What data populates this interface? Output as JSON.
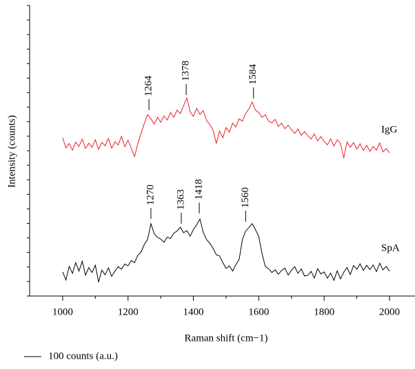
{
  "chart_data": {
    "type": "line",
    "x_label": "Raman shift (cm−1)",
    "y_label": "Intensity (counts)",
    "scale_bar_label": "100 counts (a.u.)",
    "xlim": [
      899,
      2078
    ],
    "ylim": [
      0,
      100
    ],
    "xticks": [
      1000,
      1200,
      1400,
      1600,
      1800,
      2000
    ],
    "xminorticks": [
      1100,
      1300,
      1500,
      1700,
      1900
    ],
    "yticks": [
      0,
      5,
      10,
      15,
      20,
      25,
      30,
      35,
      40,
      45,
      50,
      55,
      60,
      65,
      70,
      75,
      80,
      85,
      90,
      95,
      100
    ],
    "show_ytick_labels": false,
    "x": [
      1000,
      1010,
      1020,
      1030,
      1040,
      1050,
      1060,
      1070,
      1080,
      1090,
      1100,
      1110,
      1120,
      1130,
      1140,
      1150,
      1160,
      1170,
      1180,
      1190,
      1200,
      1210,
      1220,
      1230,
      1240,
      1250,
      1260,
      1270,
      1280,
      1290,
      1300,
      1310,
      1320,
      1330,
      1340,
      1350,
      1360,
      1370,
      1380,
      1390,
      1400,
      1410,
      1420,
      1430,
      1440,
      1450,
      1460,
      1470,
      1480,
      1490,
      1500,
      1510,
      1520,
      1530,
      1540,
      1550,
      1560,
      1570,
      1580,
      1590,
      1600,
      1610,
      1620,
      1630,
      1640,
      1650,
      1660,
      1670,
      1680,
      1690,
      1700,
      1710,
      1720,
      1730,
      1740,
      1750,
      1760,
      1770,
      1780,
      1790,
      1800,
      1810,
      1820,
      1830,
      1840,
      1850,
      1860,
      1870,
      1880,
      1890,
      1900,
      1910,
      1920,
      1930,
      1940,
      1950,
      1960,
      1970,
      1980,
      1990,
      2000
    ],
    "series": [
      {
        "name": "IgG",
        "color": "#ee1c24",
        "values": [
          54.5,
          51,
          52.5,
          50.2,
          53,
          51.5,
          54,
          50.8,
          52.6,
          51.2,
          53.8,
          50.5,
          52.9,
          51.7,
          54.2,
          50.9,
          53.1,
          52,
          55,
          51.4,
          53.6,
          50.8,
          48,
          52.5,
          56,
          59.5,
          62.5,
          61,
          59.2,
          61.5,
          59.8,
          62,
          60.6,
          63.2,
          61.5,
          64,
          62.8,
          65.5,
          68.2,
          63.5,
          61.8,
          64.6,
          62.5,
          63.8,
          60.5,
          59,
          57.2,
          52.5,
          56.8,
          54.5,
          58,
          56.4,
          59.5,
          58.2,
          61,
          60.2,
          62.8,
          64.5,
          66.8,
          64,
          63.2,
          61.5,
          62.4,
          60.2,
          59.6,
          60.8,
          58.4,
          59.5,
          57.6,
          58.8,
          57.2,
          56,
          57.5,
          55.3,
          56.6,
          55.2,
          54,
          55.8,
          53.4,
          54.9,
          53.2,
          52,
          54.1,
          51.6,
          53.8,
          52.5,
          47.5,
          53,
          51.2,
          52.8,
          50.6,
          52.4,
          50.1,
          51.9,
          49.8,
          51.5,
          50.2,
          52.7,
          49.6,
          50.8,
          49.3
        ],
        "peaks": [
          {
            "x": 1264,
            "y": 64
          },
          {
            "x": 1378,
            "y": 69.2
          },
          {
            "x": 1584,
            "y": 68
          }
        ]
      },
      {
        "name": "SpA",
        "color": "#000000",
        "values": [
          8.3,
          5.5,
          10.2,
          7.8,
          11.5,
          8.6,
          12,
          7.2,
          9.8,
          8.1,
          10.6,
          4.8,
          8.9,
          7.3,
          9.7,
          6.8,
          8.6,
          10.1,
          9.2,
          11,
          10.4,
          12.2,
          11.5,
          14,
          15.2,
          17.8,
          19.5,
          24.9,
          21.5,
          20.2,
          19.6,
          18.5,
          20.3,
          19.8,
          21.6,
          22.4,
          23.7,
          21.8,
          22.5,
          20.6,
          22.9,
          24.5,
          26.5,
          22,
          19.5,
          18.2,
          16.5,
          14.2,
          13.8,
          11.5,
          9.5,
          10.4,
          8.6,
          10.8,
          12.6,
          19.5,
          22.4,
          23.6,
          24.9,
          22.8,
          20.5,
          14.6,
          10.2,
          9.4,
          8.1,
          9,
          7.5,
          8.8,
          9.6,
          7.2,
          8.9,
          10.1,
          7.8,
          9.3,
          6.9,
          7.1,
          8.5,
          6.2,
          9.4,
          7.6,
          8.3,
          6.1,
          7.9,
          5.4,
          8.7,
          5.9,
          8.2,
          9.8,
          7.4,
          10.5,
          9.2,
          11.1,
          8.8,
          10.6,
          9.1,
          10.7,
          8.4,
          11.3,
          9,
          10.2,
          8.5
        ],
        "peaks": [
          {
            "x": 1270,
            "y": 26.5
          },
          {
            "x": 1363,
            "y": 24.9
          },
          {
            "x": 1418,
            "y": 28.4
          },
          {
            "x": 1560,
            "y": 25.6
          }
        ]
      }
    ]
  }
}
